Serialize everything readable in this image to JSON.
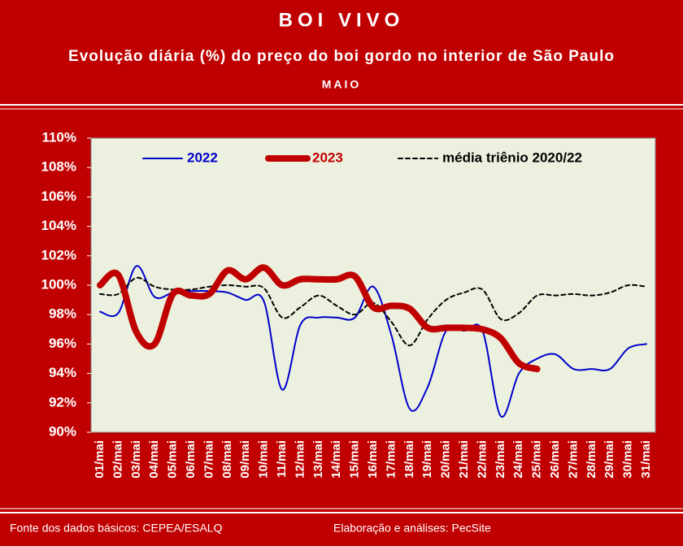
{
  "chart_data": {
    "type": "line",
    "title": "BOI VIVO",
    "subtitle": "Evolução diária (%) do preço do boi gordo no interior de São Paulo",
    "period": "MAIO",
    "source": "Fonte dos dados básicos: CEPEA/ESALQ",
    "credit": "Elaboração e análises: PecSite",
    "categories": [
      "01/mai",
      "02/mai",
      "03/mai",
      "04/mai",
      "05/mai",
      "06/mai",
      "07/mai",
      "08/mai",
      "09/mai",
      "10/mai",
      "11/mai",
      "12/mai",
      "13/mai",
      "14/mai",
      "15/mai",
      "16/mai",
      "17/mai",
      "18/mai",
      "19/mai",
      "20/mai",
      "21/mai",
      "22/mai",
      "23/mai",
      "24/mai",
      "25/mai",
      "26/mai",
      "27/mai",
      "28/mai",
      "29/mai",
      "30/mai",
      "31/mai"
    ],
    "series": [
      {
        "name": "2022",
        "color": "#0000cc",
        "width": 2,
        "dash": false,
        "values": [
          98.2,
          98.1,
          101.3,
          99.2,
          99.5,
          99.6,
          99.6,
          99.5,
          99.0,
          98.9,
          92.9,
          97.3,
          97.8,
          97.8,
          97.8,
          99.9,
          96.6,
          91.6,
          93.1,
          96.9,
          96.9,
          96.9,
          91.1,
          94.0,
          95.0,
          95.3,
          94.3,
          94.3,
          94.3,
          95.7,
          96.0
        ]
      },
      {
        "name": "2023",
        "color": "#c00000",
        "width": 8,
        "dash": false,
        "values": [
          100.0,
          100.7,
          96.8,
          96.0,
          99.4,
          99.3,
          99.4,
          101.0,
          100.4,
          101.2,
          100.0,
          100.4,
          100.4,
          100.4,
          100.6,
          98.5,
          98.6,
          98.4,
          97.1,
          97.1,
          97.1,
          97.0,
          96.4,
          94.7,
          94.3,
          null,
          null,
          null,
          null,
          null,
          null
        ]
      },
      {
        "name": "média triênio 2020/22",
        "color": "#000000",
        "width": 2,
        "dash": true,
        "values": [
          99.4,
          99.4,
          100.5,
          99.9,
          99.7,
          99.7,
          99.9,
          100.0,
          99.9,
          99.8,
          97.8,
          98.5,
          99.3,
          98.6,
          98.0,
          98.8,
          97.5,
          95.9,
          97.7,
          99.0,
          99.5,
          99.7,
          97.7,
          98.1,
          99.3,
          99.3,
          99.4,
          99.3,
          99.5,
          100.0,
          99.9
        ]
      }
    ],
    "ylim": [
      90,
      110
    ],
    "yticks": [
      {
        "value": 90,
        "label": "90%"
      },
      {
        "value": 92,
        "label": "92%"
      },
      {
        "value": 94,
        "label": "94%"
      },
      {
        "value": 96,
        "label": "96%"
      },
      {
        "value": 98,
        "label": "98%"
      },
      {
        "value": 100,
        "label": "100%"
      },
      {
        "value": 102,
        "label": "102%"
      },
      {
        "value": 104,
        "label": "104%"
      },
      {
        "value": 106,
        "label": "106%"
      },
      {
        "value": 108,
        "label": "108%"
      },
      {
        "value": 110,
        "label": "110%"
      }
    ],
    "legend": "top",
    "grid": false
  }
}
